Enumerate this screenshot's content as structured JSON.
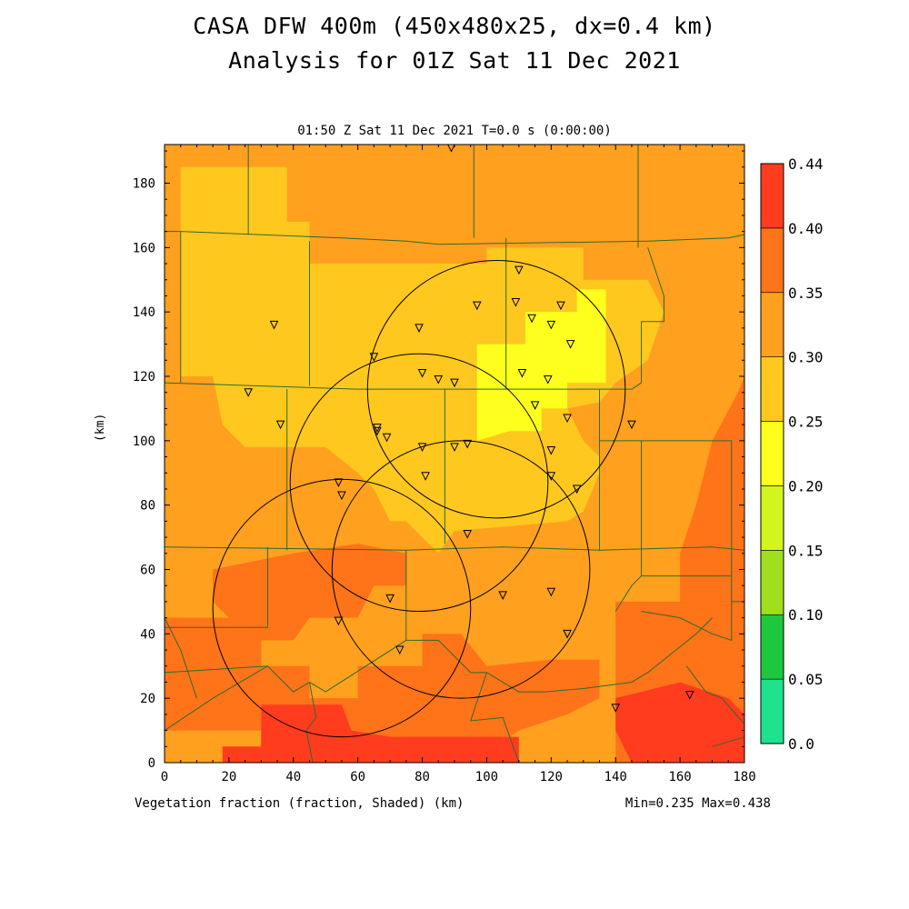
{
  "title_line1": "CASA DFW 400m (450x480x25, dx=0.4 km)",
  "title_line2": "Analysis for 01Z Sat 11 Dec 2021",
  "subtitle": "01:50 Z Sat 11 Dec 2021   T=0.0 s (0:00:00)",
  "footer_left": "Vegetation fraction (fraction, Shaded)  (km)",
  "footer_right": "Min=0.235 Max=0.438",
  "y_axis_label": "(km)",
  "chart_data": {
    "type": "heatmap",
    "variable": "Vegetation fraction",
    "units": "fraction",
    "xlim": [
      0,
      180
    ],
    "ylim": [
      0,
      192
    ],
    "x_ticks": [
      "0",
      "20",
      "40",
      "60",
      "80",
      "100",
      "120",
      "140",
      "160",
      "180"
    ],
    "y_ticks": [
      "0",
      "20",
      "40",
      "60",
      "80",
      "100",
      "120",
      "140",
      "160",
      "180"
    ],
    "colorbar": {
      "levels": [
        "0.0",
        "0.05",
        "0.10",
        "0.15",
        "0.20",
        "0.25",
        "0.30",
        "0.35",
        "0.40",
        "0.44"
      ],
      "colors": [
        "#1ee38c",
        "#1ec83c",
        "#9fdf1e",
        "#d2f51e",
        "#ffff1e",
        "#ffc81e",
        "#ffa01e",
        "#ff7319",
        "#ff3c1e"
      ]
    },
    "min": 0.235,
    "max": 0.438,
    "regions": [
      {
        "polygon": [
          [
            0,
            192
          ],
          [
            180,
            192
          ],
          [
            180,
            0
          ],
          [
            0,
            0
          ]
        ],
        "value": 0.32
      },
      {
        "polygon": [
          [
            5,
            185
          ],
          [
            38,
            185
          ],
          [
            38,
            168
          ],
          [
            45,
            168
          ],
          [
            45,
            155
          ],
          [
            5,
            155
          ]
        ],
        "value": 0.28
      },
      {
        "polygon": [
          [
            5,
            155
          ],
          [
            100,
            155
          ],
          [
            100,
            160
          ],
          [
            130,
            160
          ],
          [
            130,
            150
          ],
          [
            150,
            150
          ],
          [
            155,
            140
          ],
          [
            150,
            125
          ],
          [
            140,
            118
          ],
          [
            135,
            112
          ],
          [
            125,
            110
          ],
          [
            130,
            100
          ],
          [
            135,
            95
          ],
          [
            135,
            90
          ],
          [
            130,
            78
          ],
          [
            125,
            75
          ],
          [
            90,
            72
          ],
          [
            85,
            65
          ],
          [
            75,
            75
          ],
          [
            70,
            75
          ],
          [
            65,
            85
          ],
          [
            60,
            90
          ],
          [
            50,
            98
          ],
          [
            25,
            98
          ],
          [
            18,
            105
          ],
          [
            15,
            120
          ],
          [
            5,
            120
          ]
        ],
        "value": 0.28
      },
      {
        "polygon": [
          [
            97,
            130
          ],
          [
            112,
            130
          ],
          [
            112,
            140
          ],
          [
            128,
            140
          ],
          [
            128,
            147
          ],
          [
            137,
            147
          ],
          [
            137,
            118
          ],
          [
            125,
            118
          ],
          [
            125,
            110
          ],
          [
            117,
            110
          ],
          [
            117,
            103
          ],
          [
            107,
            103
          ],
          [
            97,
            100
          ]
        ],
        "value": 0.23
      },
      {
        "polygon": [
          [
            0,
            45
          ],
          [
            30,
            45
          ],
          [
            30,
            30
          ],
          [
            45,
            30
          ],
          [
            45,
            20
          ],
          [
            60,
            20
          ],
          [
            60,
            30
          ],
          [
            80,
            30
          ],
          [
            80,
            40
          ],
          [
            92,
            40
          ],
          [
            100,
            30
          ],
          [
            120,
            32
          ],
          [
            135,
            32
          ],
          [
            135,
            20
          ],
          [
            125,
            15
          ],
          [
            110,
            10
          ],
          [
            100,
            3
          ],
          [
            60,
            3
          ],
          [
            60,
            8
          ],
          [
            30,
            10
          ],
          [
            0,
            10
          ]
        ],
        "value": 0.37
      },
      {
        "polygon": [
          [
            15,
            60
          ],
          [
            40,
            65
          ],
          [
            60,
            68
          ],
          [
            75,
            65
          ],
          [
            75,
            55
          ],
          [
            65,
            55
          ],
          [
            60,
            45
          ],
          [
            45,
            45
          ],
          [
            40,
            38
          ],
          [
            30,
            38
          ],
          [
            20,
            45
          ],
          [
            15,
            50
          ]
        ],
        "value": 0.36
      },
      {
        "polygon": [
          [
            140,
            50
          ],
          [
            160,
            50
          ],
          [
            160,
            65
          ],
          [
            165,
            80
          ],
          [
            170,
            100
          ],
          [
            178,
            115
          ],
          [
            180,
            120
          ],
          [
            180,
            0
          ],
          [
            140,
            0
          ]
        ],
        "value": 0.37
      },
      {
        "polygon": [
          [
            30,
            18
          ],
          [
            55,
            18
          ],
          [
            58,
            10
          ],
          [
            70,
            8
          ],
          [
            110,
            8
          ],
          [
            110,
            0
          ],
          [
            18,
            0
          ],
          [
            18,
            5
          ],
          [
            30,
            5
          ]
        ],
        "value": 0.42
      },
      {
        "polygon": [
          [
            140,
            20
          ],
          [
            160,
            25
          ],
          [
            175,
            20
          ],
          [
            180,
            15
          ],
          [
            180,
            0
          ],
          [
            145,
            0
          ],
          [
            140,
            10
          ]
        ],
        "value": 0.42
      }
    ],
    "radars": [
      {
        "x": 55,
        "y": 48,
        "radius": 40
      },
      {
        "x": 79,
        "y": 87,
        "radius": 40
      },
      {
        "x": 103,
        "y": 116,
        "radius": 40
      },
      {
        "x": 92,
        "y": 60,
        "radius": 40
      }
    ],
    "stations": [
      [
        89,
        191
      ],
      [
        110,
        153
      ],
      [
        97,
        142
      ],
      [
        109,
        143
      ],
      [
        123,
        142
      ],
      [
        114,
        138
      ],
      [
        120,
        136
      ],
      [
        126,
        130
      ],
      [
        34,
        136
      ],
      [
        79,
        135
      ],
      [
        65,
        126
      ],
      [
        80,
        121
      ],
      [
        85,
        119
      ],
      [
        90,
        118
      ],
      [
        111,
        121
      ],
      [
        119,
        119
      ],
      [
        26,
        115
      ],
      [
        115,
        111
      ],
      [
        125,
        107
      ],
      [
        145,
        105
      ],
      [
        36,
        105
      ],
      [
        66,
        104
      ],
      [
        66,
        103
      ],
      [
        69,
        101
      ],
      [
        80,
        98
      ],
      [
        90,
        98
      ],
      [
        94,
        99
      ],
      [
        120,
        97
      ],
      [
        81,
        89
      ],
      [
        120,
        89
      ],
      [
        128,
        85
      ],
      [
        54,
        87
      ],
      [
        55,
        83
      ],
      [
        94,
        71
      ],
      [
        70,
        51
      ],
      [
        105,
        52
      ],
      [
        120,
        53
      ],
      [
        54,
        44
      ],
      [
        73,
        35
      ],
      [
        125,
        40
      ],
      [
        140,
        17
      ],
      [
        163,
        21
      ]
    ],
    "county_lines": [
      [
        [
          0,
          165
        ],
        [
          5,
          165
        ],
        [
          55,
          163
        ],
        [
          75,
          162
        ],
        [
          85,
          161
        ],
        [
          150,
          162
        ],
        [
          175,
          163
        ],
        [
          180,
          164
        ]
      ],
      [
        [
          5,
          165
        ],
        [
          5,
          118
        ]
      ],
      [
        [
          0,
          118
        ],
        [
          60,
          116
        ],
        [
          100,
          116
        ],
        [
          145,
          116
        ]
      ],
      [
        [
          45,
          162
        ],
        [
          45,
          117
        ]
      ],
      [
        [
          26,
          192
        ],
        [
          26,
          164
        ]
      ],
      [
        [
          96,
          192
        ],
        [
          96,
          163
        ]
      ],
      [
        [
          147,
          192
        ],
        [
          147,
          160
        ]
      ],
      [
        [
          150,
          160
        ],
        [
          155,
          145
        ],
        [
          155,
          137
        ],
        [
          148,
          137
        ],
        [
          148,
          118
        ],
        [
          145,
          116
        ]
      ],
      [
        [
          106,
          163
        ],
        [
          106,
          116
        ]
      ],
      [
        [
          38,
          116
        ],
        [
          38,
          66
        ]
      ],
      [
        [
          87,
          116
        ],
        [
          87,
          68
        ]
      ],
      [
        [
          135,
          116
        ],
        [
          135,
          66
        ]
      ],
      [
        [
          135,
          116
        ],
        [
          135,
          100
        ],
        [
          148,
          100
        ],
        [
          148,
          58
        ]
      ],
      [
        [
          0,
          67
        ],
        [
          75,
          66
        ],
        [
          105,
          67
        ],
        [
          135,
          66
        ],
        [
          170,
          67
        ],
        [
          180,
          66
        ]
      ],
      [
        [
          148,
          100
        ],
        [
          176,
          100
        ],
        [
          176,
          50
        ],
        [
          180,
          50
        ]
      ],
      [
        [
          32,
          67
        ],
        [
          32,
          52
        ],
        [
          32,
          42
        ],
        [
          10,
          42
        ]
      ],
      [
        [
          75,
          66
        ],
        [
          75,
          38
        ]
      ],
      [
        [
          0,
          42
        ],
        [
          10,
          42
        ]
      ],
      [
        [
          0,
          28
        ],
        [
          32,
          30
        ],
        [
          40,
          22
        ],
        [
          45,
          25
        ],
        [
          50,
          22
        ],
        [
          75,
          38
        ],
        [
          85,
          38
        ],
        [
          95,
          28
        ],
        [
          100,
          28
        ],
        [
          110,
          22
        ],
        [
          118,
          22
        ],
        [
          130,
          23
        ],
        [
          145,
          25
        ],
        [
          150,
          28
        ],
        [
          165,
          40
        ],
        [
          170,
          45
        ]
      ],
      [
        [
          0,
          45
        ],
        [
          5,
          35
        ],
        [
          10,
          20
        ]
      ],
      [
        [
          0,
          10
        ],
        [
          15,
          20
        ],
        [
          32,
          30
        ]
      ],
      [
        [
          45,
          25
        ],
        [
          47,
          14
        ],
        [
          44,
          10
        ],
        [
          46,
          0
        ]
      ],
      [
        [
          100,
          28
        ],
        [
          95,
          13
        ],
        [
          105,
          14
        ],
        [
          110,
          0
        ]
      ],
      [
        [
          140,
          47
        ],
        [
          145,
          55
        ],
        [
          148,
          58
        ],
        [
          176,
          58
        ]
      ],
      [
        [
          162,
          30
        ],
        [
          168,
          22
        ],
        [
          173,
          20
        ],
        [
          180,
          12
        ],
        [
          180,
          0
        ]
      ],
      [
        [
          170,
          5
        ],
        [
          180,
          8
        ]
      ],
      [
        [
          148,
          47
        ],
        [
          160,
          45
        ],
        [
          170,
          40
        ],
        [
          176,
          38
        ],
        [
          176,
          50
        ]
      ],
      [
        [
          0,
          0
        ],
        [
          180,
          0
        ]
      ]
    ]
  }
}
